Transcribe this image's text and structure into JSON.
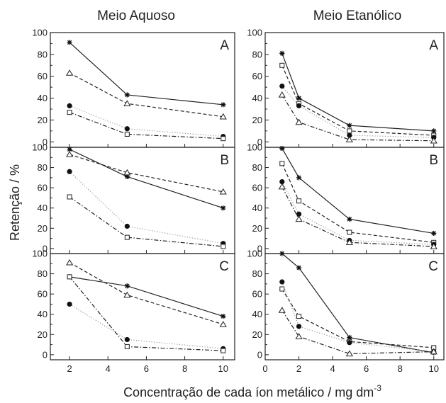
{
  "figure": {
    "columns": [
      "Meio Aquoso",
      "Meio Etanólico"
    ],
    "ylabel": "Retenção / %",
    "xlabel": "Concentração de cada íon metálico / mg dm",
    "xlabel_sup": "-3"
  },
  "chart_data": [
    {
      "type": "line",
      "column": "Meio Aquoso",
      "panel": "A",
      "x": [
        2,
        5,
        10
      ],
      "xlim": [
        1,
        10.6
      ],
      "ylim": [
        -5,
        100
      ],
      "yticks": [
        0,
        20,
        40,
        60,
        80,
        100
      ],
      "xticks": [],
      "series": [
        {
          "marker": "star",
          "style": "solid",
          "values": [
            91,
            43,
            34
          ]
        },
        {
          "marker": "triangle",
          "style": "dash",
          "values": [
            63,
            35,
            23
          ]
        },
        {
          "marker": "circle",
          "style": "dot",
          "values": [
            33,
            12,
            5
          ]
        },
        {
          "marker": "square",
          "style": "dashdot",
          "values": [
            27,
            7,
            3
          ]
        }
      ]
    },
    {
      "type": "line",
      "column": "Meio Aquoso",
      "panel": "B",
      "x": [
        2,
        5,
        10
      ],
      "xlim": [
        1,
        10.6
      ],
      "ylim": [
        -5,
        100
      ],
      "yticks": [
        0,
        20,
        40,
        60,
        80,
        100
      ],
      "xticks": [],
      "series": [
        {
          "marker": "star",
          "style": "solid",
          "values": [
            98,
            71,
            40
          ]
        },
        {
          "marker": "triangle",
          "style": "dash",
          "values": [
            93,
            75,
            56
          ]
        },
        {
          "marker": "circle",
          "style": "dot",
          "values": [
            76,
            22,
            5
          ]
        },
        {
          "marker": "square",
          "style": "dashdot",
          "values": [
            51,
            11,
            2
          ]
        }
      ]
    },
    {
      "type": "line",
      "column": "Meio Aquoso",
      "panel": "C",
      "x": [
        2,
        5,
        10
      ],
      "xlim": [
        1,
        10.6
      ],
      "ylim": [
        -5,
        100
      ],
      "yticks": [
        0,
        20,
        40,
        60,
        80,
        100
      ],
      "xticks": [
        2,
        4,
        6,
        8,
        10
      ],
      "series": [
        {
          "marker": "star",
          "style": "solid",
          "values": [
            77,
            68,
            38
          ]
        },
        {
          "marker": "triangle",
          "style": "dash",
          "values": [
            91,
            59,
            30
          ]
        },
        {
          "marker": "circle",
          "style": "dot",
          "values": [
            50,
            15,
            6
          ]
        },
        {
          "marker": "square",
          "style": "dashdot",
          "values": [
            77,
            8,
            4
          ]
        }
      ]
    },
    {
      "type": "line",
      "column": "Meio Etanólico",
      "panel": "A",
      "x": [
        1,
        2,
        5,
        10
      ],
      "xlim": [
        0,
        10.6
      ],
      "ylim": [
        -5,
        100
      ],
      "yticks": [
        0,
        20,
        40,
        60,
        80,
        100
      ],
      "xticks": [],
      "series": [
        {
          "marker": "star",
          "style": "solid",
          "values": [
            81,
            40,
            15,
            10
          ]
        },
        {
          "marker": "square",
          "style": "dash",
          "values": [
            70,
            35,
            10,
            6
          ]
        },
        {
          "marker": "circle",
          "style": "dot",
          "values": [
            51,
            33,
            6,
            4
          ]
        },
        {
          "marker": "triangle",
          "style": "dashdot",
          "values": [
            43,
            18,
            2,
            1
          ]
        }
      ]
    },
    {
      "type": "line",
      "column": "Meio Etanólico",
      "panel": "B",
      "x": [
        1,
        2,
        5,
        10
      ],
      "xlim": [
        0,
        10.6
      ],
      "ylim": [
        -5,
        100
      ],
      "yticks": [
        0,
        20,
        40,
        60,
        80,
        100
      ],
      "xticks": [],
      "series": [
        {
          "marker": "star",
          "style": "solid",
          "values": [
            99,
            70,
            29,
            15
          ]
        },
        {
          "marker": "square",
          "style": "dash",
          "values": [
            84,
            47,
            16,
            6
          ]
        },
        {
          "marker": "circle",
          "style": "dot",
          "values": [
            66,
            34,
            8,
            4
          ]
        },
        {
          "marker": "triangle",
          "style": "dashdot",
          "values": [
            61,
            29,
            6,
            2
          ]
        }
      ]
    },
    {
      "type": "line",
      "column": "Meio Etanólico",
      "panel": "C",
      "x": [
        1,
        2,
        5,
        10
      ],
      "xlim": [
        0,
        10.6
      ],
      "ylim": [
        -5,
        100
      ],
      "yticks": [
        0,
        20,
        40,
        60,
        80,
        100
      ],
      "xticks": [
        0,
        2,
        4,
        6,
        8,
        10
      ],
      "series": [
        {
          "marker": "star",
          "style": "solid",
          "values": [
            100,
            86,
            17,
            2
          ]
        },
        {
          "marker": "square",
          "style": "dash",
          "values": [
            65,
            38,
            13,
            7
          ]
        },
        {
          "marker": "circle",
          "style": "dot",
          "values": [
            72,
            28,
            12,
            3
          ]
        },
        {
          "marker": "triangle",
          "style": "dashdot",
          "values": [
            44,
            18,
            1,
            3
          ]
        }
      ]
    }
  ]
}
